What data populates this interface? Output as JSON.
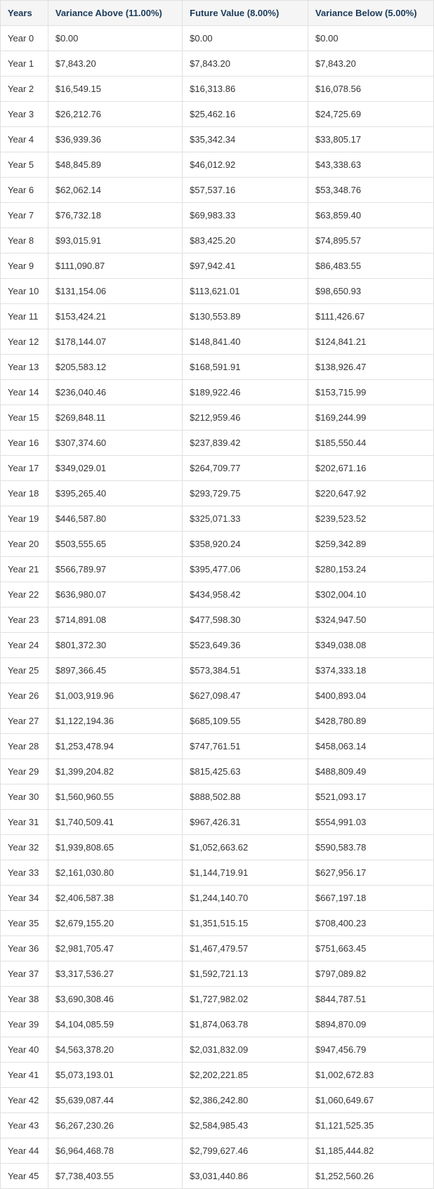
{
  "table": {
    "columns": [
      "Years",
      "Variance Above (11.00%)",
      "Future Value (8.00%)",
      "Variance Below (5.00%)"
    ],
    "column_widths_pct": [
      11,
      31,
      29,
      29
    ],
    "header_background": "#f5f5f5",
    "header_text_color": "#1a3a5a",
    "border_color": "#e0e0e0",
    "cell_background": "#ffffff",
    "text_color": "#333333",
    "font_size": 13,
    "rows": [
      [
        "Year 0",
        "$0.00",
        "$0.00",
        "$0.00"
      ],
      [
        "Year 1",
        "$7,843.20",
        "$7,843.20",
        "$7,843.20"
      ],
      [
        "Year 2",
        "$16,549.15",
        "$16,313.86",
        "$16,078.56"
      ],
      [
        "Year 3",
        "$26,212.76",
        "$25,462.16",
        "$24,725.69"
      ],
      [
        "Year 4",
        "$36,939.36",
        "$35,342.34",
        "$33,805.17"
      ],
      [
        "Year 5",
        "$48,845.89",
        "$46,012.92",
        "$43,338.63"
      ],
      [
        "Year 6",
        "$62,062.14",
        "$57,537.16",
        "$53,348.76"
      ],
      [
        "Year 7",
        "$76,732.18",
        "$69,983.33",
        "$63,859.40"
      ],
      [
        "Year 8",
        "$93,015.91",
        "$83,425.20",
        "$74,895.57"
      ],
      [
        "Year 9",
        "$111,090.87",
        "$97,942.41",
        "$86,483.55"
      ],
      [
        "Year 10",
        "$131,154.06",
        "$113,621.01",
        "$98,650.93"
      ],
      [
        "Year 11",
        "$153,424.21",
        "$130,553.89",
        "$111,426.67"
      ],
      [
        "Year 12",
        "$178,144.07",
        "$148,841.40",
        "$124,841.21"
      ],
      [
        "Year 13",
        "$205,583.12",
        "$168,591.91",
        "$138,926.47"
      ],
      [
        "Year 14",
        "$236,040.46",
        "$189,922.46",
        "$153,715.99"
      ],
      [
        "Year 15",
        "$269,848.11",
        "$212,959.46",
        "$169,244.99"
      ],
      [
        "Year 16",
        "$307,374.60",
        "$237,839.42",
        "$185,550.44"
      ],
      [
        "Year 17",
        "$349,029.01",
        "$264,709.77",
        "$202,671.16"
      ],
      [
        "Year 18",
        "$395,265.40",
        "$293,729.75",
        "$220,647.92"
      ],
      [
        "Year 19",
        "$446,587.80",
        "$325,071.33",
        "$239,523.52"
      ],
      [
        "Year 20",
        "$503,555.65",
        "$358,920.24",
        "$259,342.89"
      ],
      [
        "Year 21",
        "$566,789.97",
        "$395,477.06",
        "$280,153.24"
      ],
      [
        "Year 22",
        "$636,980.07",
        "$434,958.42",
        "$302,004.10"
      ],
      [
        "Year 23",
        "$714,891.08",
        "$477,598.30",
        "$324,947.50"
      ],
      [
        "Year 24",
        "$801,372.30",
        "$523,649.36",
        "$349,038.08"
      ],
      [
        "Year 25",
        "$897,366.45",
        "$573,384.51",
        "$374,333.18"
      ],
      [
        "Year 26",
        "$1,003,919.96",
        "$627,098.47",
        "$400,893.04"
      ],
      [
        "Year 27",
        "$1,122,194.36",
        "$685,109.55",
        "$428,780.89"
      ],
      [
        "Year 28",
        "$1,253,478.94",
        "$747,761.51",
        "$458,063.14"
      ],
      [
        "Year 29",
        "$1,399,204.82",
        "$815,425.63",
        "$488,809.49"
      ],
      [
        "Year 30",
        "$1,560,960.55",
        "$888,502.88",
        "$521,093.17"
      ],
      [
        "Year 31",
        "$1,740,509.41",
        "$967,426.31",
        "$554,991.03"
      ],
      [
        "Year 32",
        "$1,939,808.65",
        "$1,052,663.62",
        "$590,583.78"
      ],
      [
        "Year 33",
        "$2,161,030.80",
        "$1,144,719.91",
        "$627,956.17"
      ],
      [
        "Year 34",
        "$2,406,587.38",
        "$1,244,140.70",
        "$667,197.18"
      ],
      [
        "Year 35",
        "$2,679,155.20",
        "$1,351,515.15",
        "$708,400.23"
      ],
      [
        "Year 36",
        "$2,981,705.47",
        "$1,467,479.57",
        "$751,663.45"
      ],
      [
        "Year 37",
        "$3,317,536.27",
        "$1,592,721.13",
        "$797,089.82"
      ],
      [
        "Year 38",
        "$3,690,308.46",
        "$1,727,982.02",
        "$844,787.51"
      ],
      [
        "Year 39",
        "$4,104,085.59",
        "$1,874,063.78",
        "$894,870.09"
      ],
      [
        "Year 40",
        "$4,563,378.20",
        "$2,031,832.09",
        "$947,456.79"
      ],
      [
        "Year 41",
        "$5,073,193.01",
        "$2,202,221.85",
        "$1,002,672.83"
      ],
      [
        "Year 42",
        "$5,639,087.44",
        "$2,386,242.80",
        "$1,060,649.67"
      ],
      [
        "Year 43",
        "$6,267,230.26",
        "$2,584,985.43",
        "$1,121,525.35"
      ],
      [
        "Year 44",
        "$6,964,468.78",
        "$2,799,627.46",
        "$1,185,444.82"
      ],
      [
        "Year 45",
        "$7,738,403.55",
        "$3,031,440.86",
        "$1,252,560.26"
      ]
    ]
  }
}
